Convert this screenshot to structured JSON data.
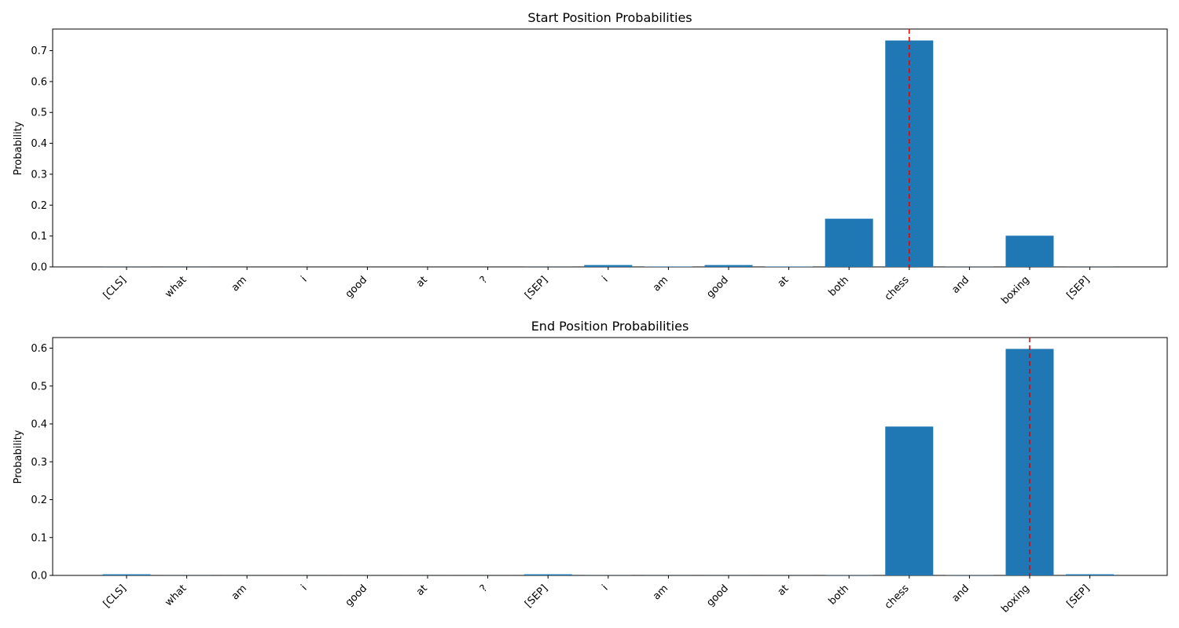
{
  "chart_data": [
    {
      "type": "bar",
      "title": "Start Position Probabilities",
      "ylabel": "Probability",
      "xlabel": "",
      "categories": [
        "[CLS]",
        "what",
        "am",
        "i",
        "good",
        "at",
        "?",
        "[SEP]",
        "i",
        "am",
        "good",
        "at",
        "both",
        "chess",
        "and",
        "boxing",
        "[SEP]"
      ],
      "values": [
        0.0003,
        0.0002,
        0.0001,
        0.0001,
        0.0001,
        0.0001,
        0.0001,
        0.0003,
        0.006,
        0.001,
        0.006,
        0.001,
        0.156,
        0.733,
        0.0005,
        0.101,
        0.0003
      ],
      "ylim": [
        0,
        0.77
      ],
      "yticks": [
        0.0,
        0.1,
        0.2,
        0.3,
        0.4,
        0.5,
        0.6,
        0.7
      ],
      "marker_category_index": 13,
      "bar_color": "#1f77b4",
      "marker_color": "#e00000",
      "grid": false
    },
    {
      "type": "bar",
      "title": "End Position Probabilities",
      "ylabel": "Probability",
      "xlabel": "",
      "categories": [
        "[CLS]",
        "what",
        "am",
        "i",
        "good",
        "at",
        "?",
        "[SEP]",
        "i",
        "am",
        "good",
        "at",
        "both",
        "chess",
        "and",
        "boxing",
        "[SEP]"
      ],
      "values": [
        0.003,
        0.0002,
        0.0001,
        0.0001,
        0.0001,
        0.0001,
        0.0001,
        0.003,
        0.0003,
        0.0002,
        0.0002,
        0.0002,
        0.0005,
        0.393,
        0.0005,
        0.598,
        0.003
      ],
      "ylim": [
        0,
        0.628
      ],
      "yticks": [
        0.0,
        0.1,
        0.2,
        0.3,
        0.4,
        0.5,
        0.6
      ],
      "marker_category_index": 15,
      "bar_color": "#1f77b4",
      "marker_color": "#e00000",
      "grid": false
    }
  ]
}
